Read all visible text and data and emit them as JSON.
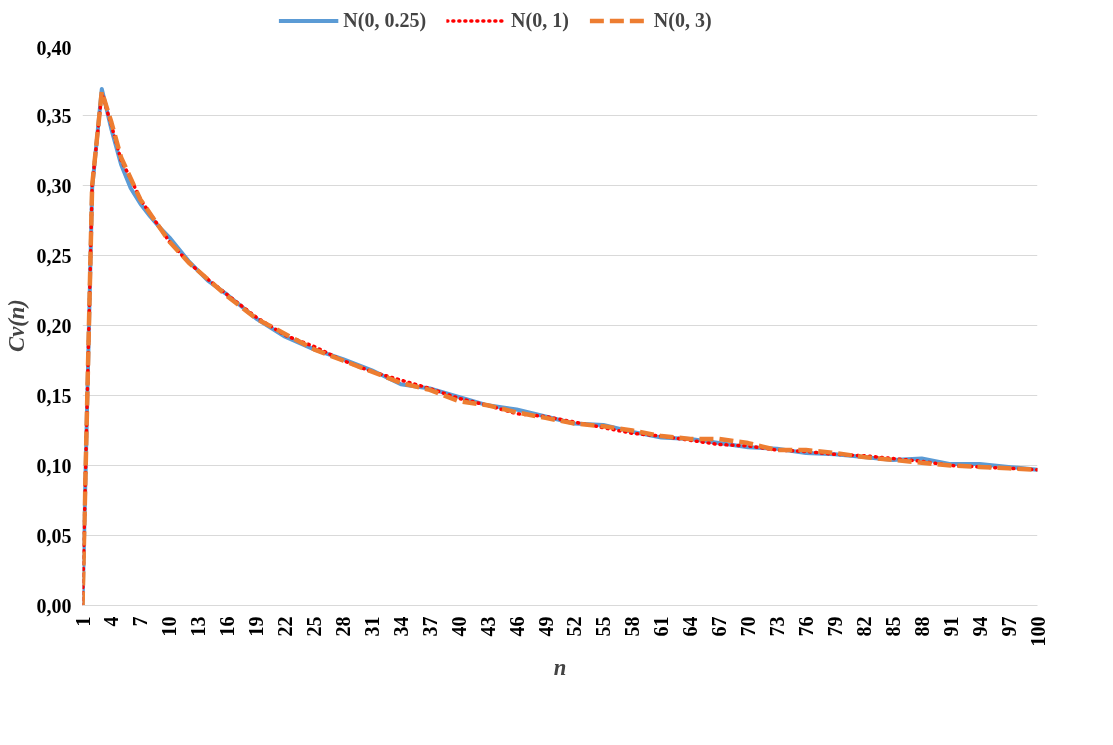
{
  "chart_data": {
    "type": "line",
    "xlabel": "n",
    "ylabel": "Cv(n)",
    "xlim": [
      1,
      100
    ],
    "xticks": [
      1,
      4,
      7,
      10,
      13,
      16,
      19,
      22,
      25,
      28,
      31,
      34,
      37,
      40,
      43,
      46,
      49,
      52,
      55,
      58,
      61,
      64,
      67,
      70,
      73,
      76,
      79,
      82,
      85,
      88,
      91,
      94,
      97,
      100
    ],
    "ylim": [
      0,
      0.4
    ],
    "yticks": [
      {
        "value": 0,
        "label": "0,00"
      },
      {
        "value": 0.05,
        "label": "0,05"
      },
      {
        "value": 0.1,
        "label": "0,10"
      },
      {
        "value": 0.15,
        "label": "0,15"
      },
      {
        "value": 0.2,
        "label": "0,20"
      },
      {
        "value": 0.25,
        "label": "0,25"
      },
      {
        "value": 0.3,
        "label": "0,30"
      },
      {
        "value": 0.35,
        "label": "0,35"
      },
      {
        "value": 0.4,
        "label": "0,40"
      }
    ],
    "grid": "y",
    "legend": "top",
    "marker": "none",
    "x": [
      1,
      2,
      3,
      4,
      5,
      6,
      7,
      8,
      9,
      10,
      12,
      14,
      16,
      19,
      22,
      25,
      28,
      31,
      34,
      37,
      40,
      43,
      46,
      49,
      52,
      55,
      58,
      61,
      64,
      67,
      70,
      73,
      76,
      79,
      82,
      85,
      88,
      91,
      94,
      97,
      100
    ],
    "series": [
      {
        "name": "N(0, 0.25)",
        "color": "#5b9bd5",
        "line_style": "solid",
        "values": [
          0,
          0.298,
          0.369,
          0.34,
          0.315,
          0.298,
          0.287,
          0.278,
          0.27,
          0.263,
          0.246,
          0.232,
          0.222,
          0.205,
          0.192,
          0.183,
          0.176,
          0.168,
          0.158,
          0.155,
          0.149,
          0.143,
          0.14,
          0.135,
          0.13,
          0.129,
          0.124,
          0.12,
          0.119,
          0.116,
          0.113,
          0.112,
          0.109,
          0.108,
          0.106,
          0.104,
          0.105,
          0.101,
          0.101,
          0.099,
          0.097
        ]
      },
      {
        "name": "N(0, 1)",
        "color": "#ff0000",
        "line_style": "dotted",
        "values": [
          0,
          0.3,
          0.366,
          0.343,
          0.318,
          0.305,
          0.29,
          0.28,
          0.27,
          0.26,
          0.245,
          0.233,
          0.222,
          0.206,
          0.193,
          0.185,
          0.175,
          0.167,
          0.161,
          0.155,
          0.148,
          0.143,
          0.137,
          0.135,
          0.131,
          0.127,
          0.123,
          0.121,
          0.118,
          0.115,
          0.114,
          0.111,
          0.11,
          0.108,
          0.107,
          0.105,
          0.103,
          0.1,
          0.099,
          0.098,
          0.097
        ]
      },
      {
        "name": "N(0, 3)",
        "color": "#ed7d31",
        "line_style": "dashed",
        "values": [
          0,
          0.3,
          0.367,
          0.345,
          0.32,
          0.305,
          0.29,
          0.28,
          0.27,
          0.26,
          0.245,
          0.233,
          0.221,
          0.205,
          0.194,
          0.183,
          0.175,
          0.167,
          0.159,
          0.154,
          0.146,
          0.143,
          0.138,
          0.134,
          0.13,
          0.128,
          0.125,
          0.121,
          0.119,
          0.119,
          0.116,
          0.111,
          0.111,
          0.109,
          0.106,
          0.104,
          0.102,
          0.1,
          0.099,
          0.098,
          0.097
        ]
      }
    ]
  }
}
